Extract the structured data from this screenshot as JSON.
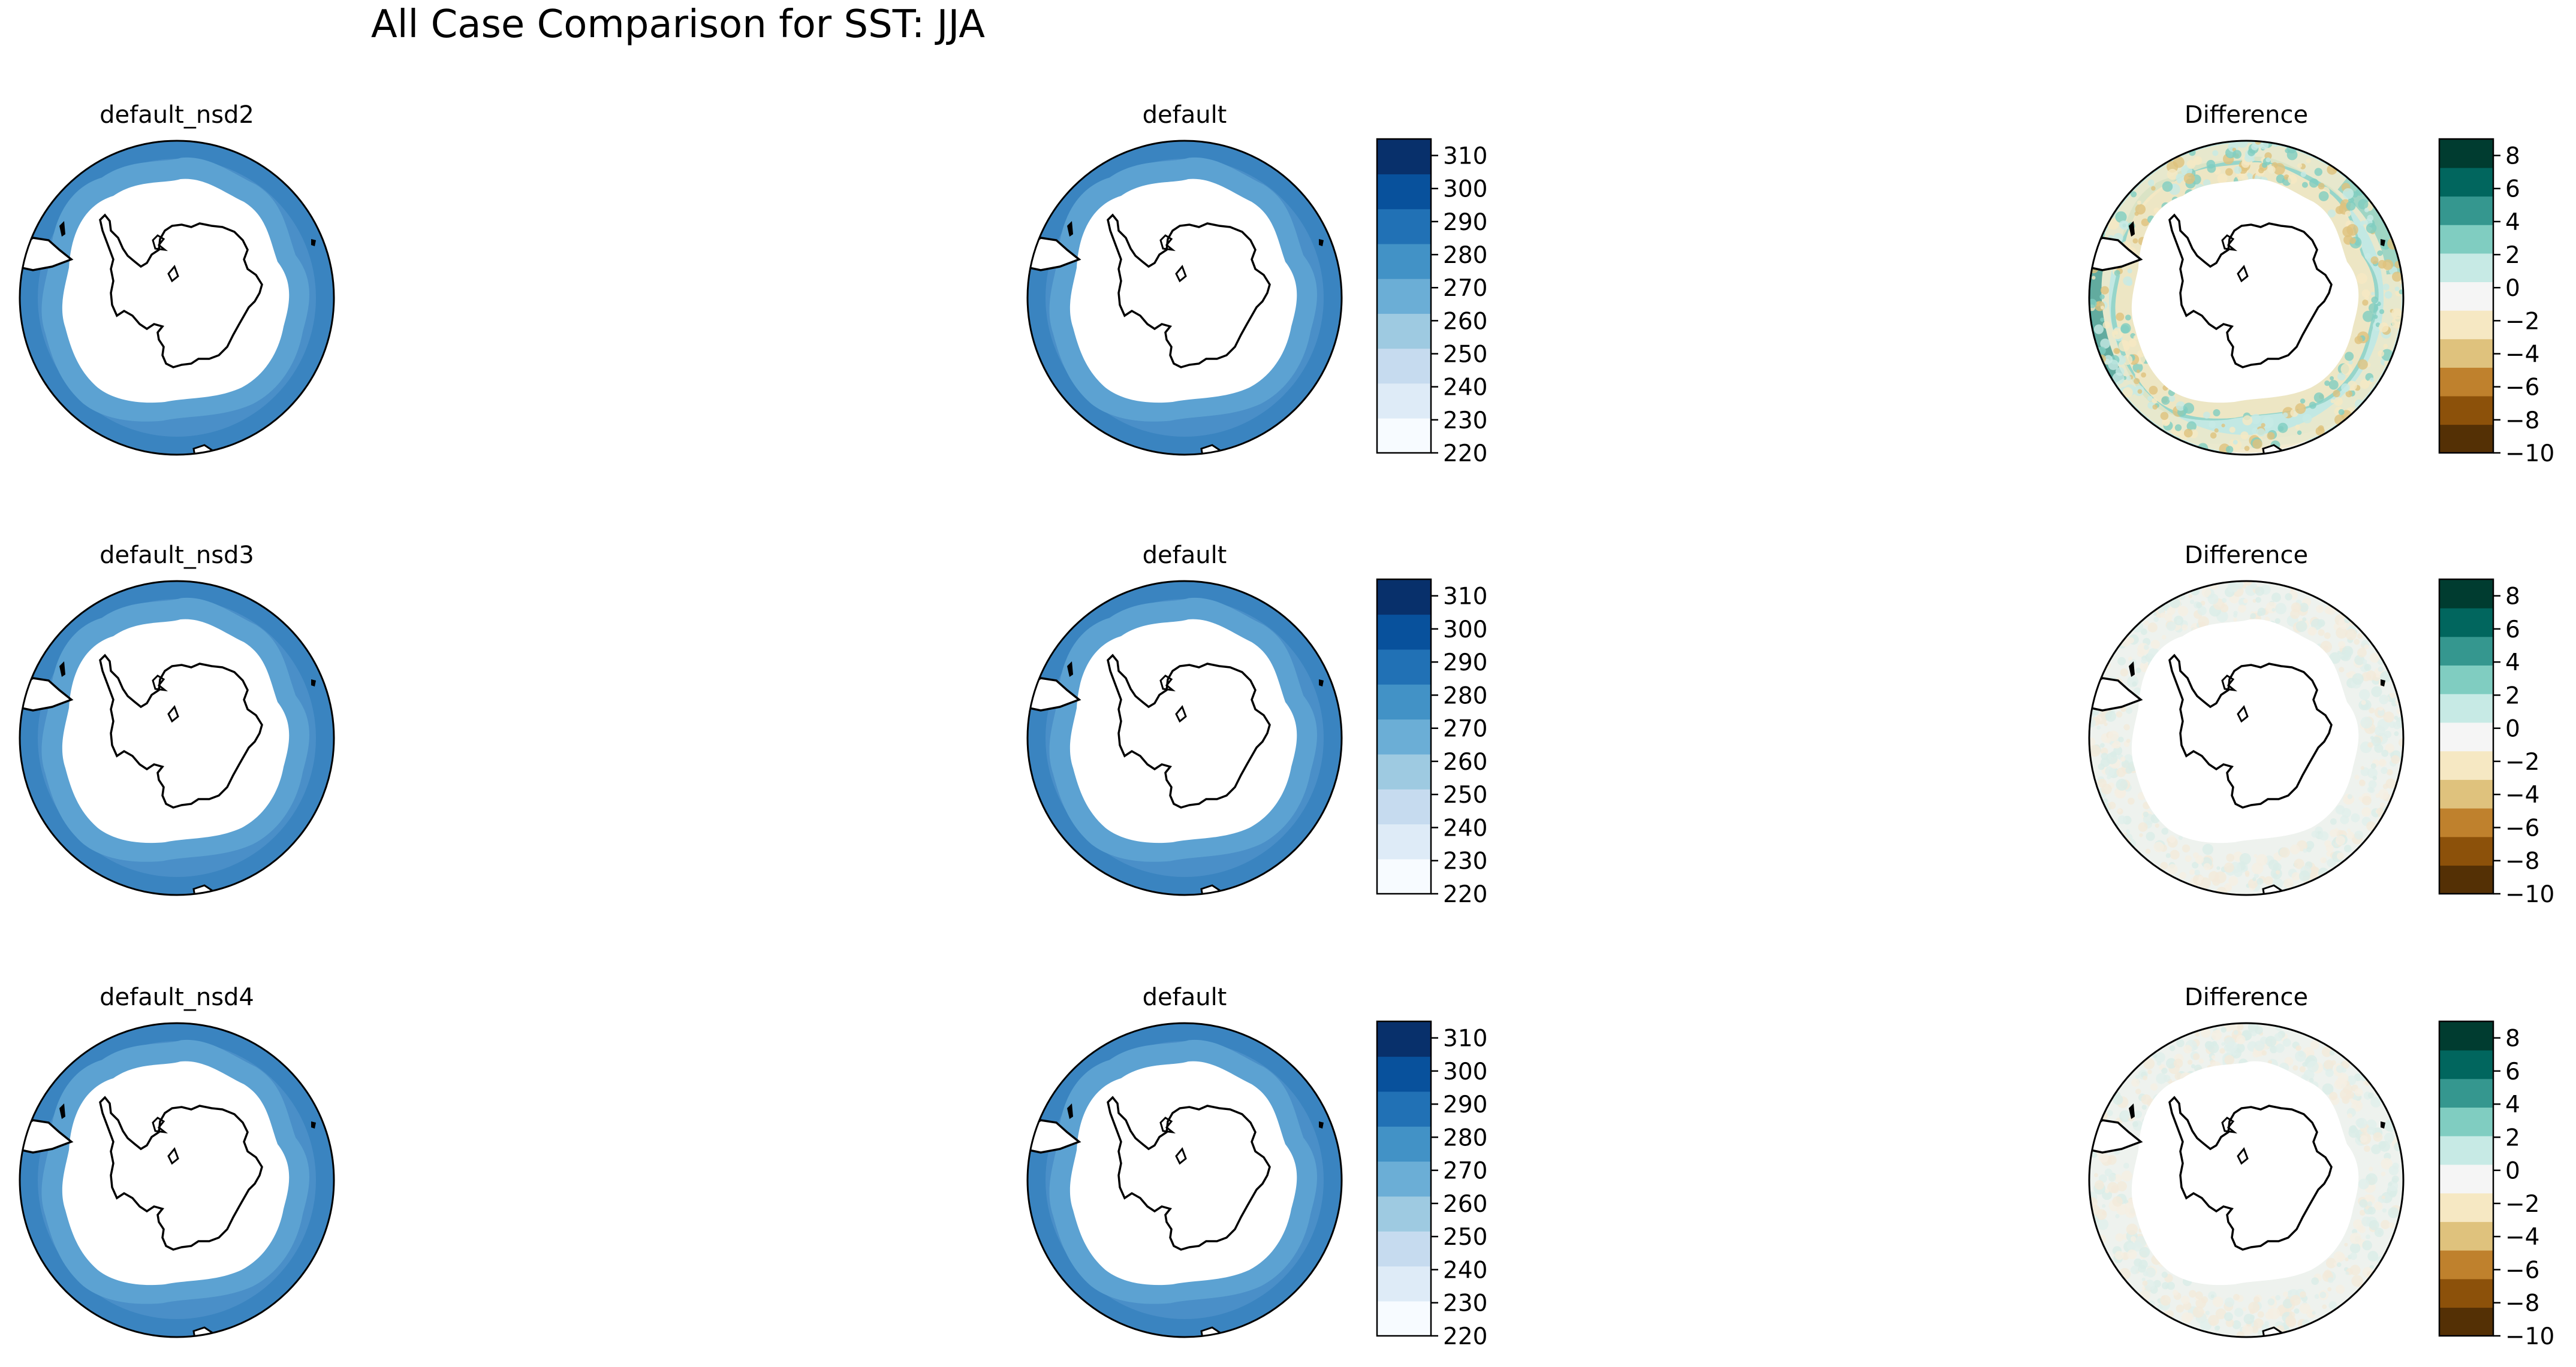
{
  "figure": {
    "title": "All Case Comparison for SST: JJA"
  },
  "rows": [
    {
      "panels": [
        {
          "title": "default_nsd2",
          "kind": "field",
          "colorbar": false
        },
        {
          "title": "default",
          "kind": "field",
          "colorbar": true
        },
        {
          "title": "Difference",
          "kind": "difference",
          "colorbar": true,
          "difference_strength": "strong"
        }
      ]
    },
    {
      "panels": [
        {
          "title": "default_nsd3",
          "kind": "field",
          "colorbar": false
        },
        {
          "title": "default",
          "kind": "field",
          "colorbar": true
        },
        {
          "title": "Difference",
          "kind": "difference",
          "colorbar": true,
          "difference_strength": "near-zero"
        }
      ]
    },
    {
      "panels": [
        {
          "title": "default_nsd4",
          "kind": "field",
          "colorbar": false
        },
        {
          "title": "default",
          "kind": "field",
          "colorbar": true
        },
        {
          "title": "Difference",
          "kind": "difference",
          "colorbar": true,
          "difference_strength": "near-zero"
        }
      ]
    }
  ],
  "colorbars": {
    "field": {
      "colormap": "Blues",
      "ticks": [
        "220",
        "230",
        "240",
        "250",
        "260",
        "270",
        "280",
        "290",
        "300",
        "310"
      ],
      "range": [
        220,
        315
      ],
      "colors": [
        "#f7fbff",
        "#deebf7",
        "#c6dbef",
        "#9ecae1",
        "#6baed6",
        "#4292c6",
        "#2171b5",
        "#08519c",
        "#08306b"
      ]
    },
    "difference": {
      "colormap": "BrBG",
      "ticks": [
        "−10",
        "−8",
        "−6",
        "−4",
        "−2",
        "0",
        "2",
        "4",
        "6",
        "8"
      ],
      "range": [
        -10,
        9
      ],
      "colors": [
        "#543005",
        "#8c510a",
        "#bf812d",
        "#dfc27d",
        "#f6e8c3",
        "#f5f5f5",
        "#c7eae5",
        "#80cdc1",
        "#35978f",
        "#01665e",
        "#003c30"
      ]
    }
  },
  "map": {
    "projection": "south polar stereographic",
    "ocean_color": "#4a8fc8",
    "outer_ring_color": "#3a84c0",
    "inner_ring_color": "#5ca2d2",
    "land_color": "#ffffff"
  }
}
